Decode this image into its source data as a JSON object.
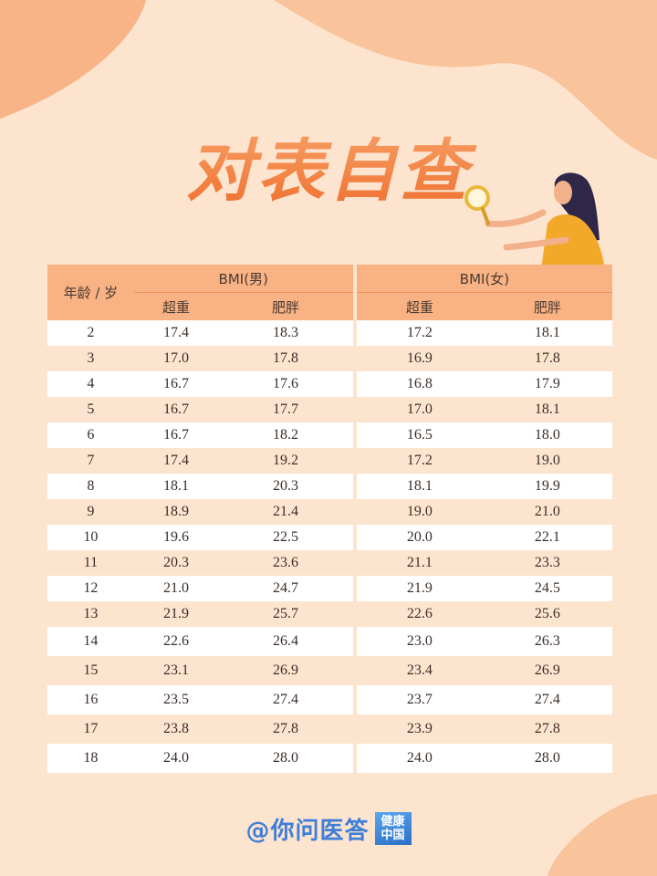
{
  "title": "对表自查",
  "table": {
    "age_header": "年龄 / 岁",
    "groups": [
      {
        "label": "BMI(男)",
        "sub": [
          "超重",
          "肥胖"
        ]
      },
      {
        "label": "BMI(女)",
        "sub": [
          "超重",
          "肥胖"
        ]
      }
    ],
    "rows": [
      {
        "age": "2",
        "m_over": "17.4",
        "m_obese": "18.3",
        "f_over": "17.2",
        "f_obese": "18.1"
      },
      {
        "age": "3",
        "m_over": "17.0",
        "m_obese": "17.8",
        "f_over": "16.9",
        "f_obese": "17.8"
      },
      {
        "age": "4",
        "m_over": "16.7",
        "m_obese": "17.6",
        "f_over": "16.8",
        "f_obese": "17.9"
      },
      {
        "age": "5",
        "m_over": "16.7",
        "m_obese": "17.7",
        "f_over": "17.0",
        "f_obese": "18.1"
      },
      {
        "age": "6",
        "m_over": "16.7",
        "m_obese": "18.2",
        "f_over": "16.5",
        "f_obese": "18.0"
      },
      {
        "age": "7",
        "m_over": "17.4",
        "m_obese": "19.2",
        "f_over": "17.2",
        "f_obese": "19.0"
      },
      {
        "age": "8",
        "m_over": "18.1",
        "m_obese": "20.3",
        "f_over": "18.1",
        "f_obese": "19.9"
      },
      {
        "age": "9",
        "m_over": "18.9",
        "m_obese": "21.4",
        "f_over": "19.0",
        "f_obese": "21.0"
      },
      {
        "age": "10",
        "m_over": "19.6",
        "m_obese": "22.5",
        "f_over": "20.0",
        "f_obese": "22.1"
      },
      {
        "age": "11",
        "m_over": "20.3",
        "m_obese": "23.6",
        "f_over": "21.1",
        "f_obese": "23.3"
      },
      {
        "age": "12",
        "m_over": "21.0",
        "m_obese": "24.7",
        "f_over": "21.9",
        "f_obese": "24.5"
      },
      {
        "age": "13",
        "m_over": "21.9",
        "m_obese": "25.7",
        "f_over": "22.6",
        "f_obese": "25.6"
      },
      {
        "age": "14",
        "m_over": "22.6",
        "m_obese": "26.4",
        "f_over": "23.0",
        "f_obese": "26.3"
      },
      {
        "age": "15",
        "m_over": "23.1",
        "m_obese": "26.9",
        "f_over": "23.4",
        "f_obese": "26.9"
      },
      {
        "age": "16",
        "m_over": "23.5",
        "m_obese": "27.4",
        "f_over": "23.7",
        "f_obese": "27.4"
      },
      {
        "age": "17",
        "m_over": "23.8",
        "m_obese": "27.8",
        "f_over": "23.9",
        "f_obese": "27.8"
      },
      {
        "age": "18",
        "m_over": "24.0",
        "m_obese": "28.0",
        "f_over": "24.0",
        "f_obese": "28.0"
      }
    ]
  },
  "footer": {
    "handle": "@你问医答",
    "badge_line1": "健康",
    "badge_line2": "中国"
  },
  "colors": {
    "background": "#fde4cf",
    "header_fill": "#f8b283",
    "title_orange": "#ef6f2f",
    "footer_blue": "#3f7fd8"
  }
}
